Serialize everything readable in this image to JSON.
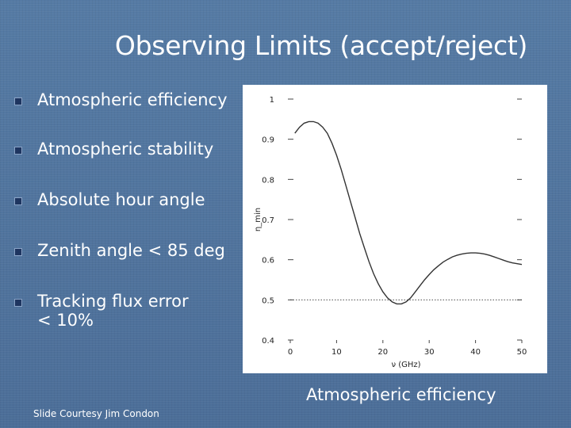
{
  "slide": {
    "title": "Observing Limits (accept/reject)",
    "bullets": [
      {
        "text": "Atmospheric efficiency"
      },
      {
        "text": "Atmospheric stability"
      },
      {
        "text": "Absolute hour angle"
      },
      {
        "text": "Zenith angle < 85 deg"
      },
      {
        "text": "Tracking flux error",
        "text2": "< 10%"
      }
    ],
    "caption": "Atmospheric efficiency",
    "credit": "Slide Courtesy Jim Condon"
  },
  "chart_data": {
    "type": "line",
    "xlabel": "ν (GHz)",
    "ylabel": "η_min",
    "xlim": [
      0,
      50
    ],
    "ylim": [
      0.4,
      1
    ],
    "x_ticks": [
      0,
      10,
      20,
      30,
      40,
      50
    ],
    "y_ticks": [
      0.4,
      0.5,
      0.6,
      0.7,
      0.8,
      0.9,
      1
    ],
    "grid": false,
    "series": [
      {
        "x": [
          1,
          2,
          3,
          4,
          5,
          6,
          7,
          8,
          9,
          10,
          11,
          12,
          13,
          14,
          15,
          16,
          17,
          18,
          19,
          20,
          21,
          22,
          23,
          24,
          25,
          26,
          27,
          28,
          29,
          30,
          31,
          32,
          33,
          34,
          35,
          36,
          37,
          38,
          39,
          40,
          41,
          42,
          43,
          44,
          45,
          46,
          47,
          48,
          49,
          50
        ],
        "y": [
          0.915,
          0.93,
          0.94,
          0.944,
          0.944,
          0.94,
          0.93,
          0.915,
          0.89,
          0.86,
          0.825,
          0.785,
          0.745,
          0.705,
          0.665,
          0.63,
          0.595,
          0.565,
          0.54,
          0.52,
          0.505,
          0.495,
          0.49,
          0.49,
          0.495,
          0.505,
          0.52,
          0.535,
          0.55,
          0.563,
          0.575,
          0.585,
          0.594,
          0.601,
          0.607,
          0.611,
          0.614,
          0.616,
          0.617,
          0.617,
          0.616,
          0.614,
          0.611,
          0.607,
          0.603,
          0.599,
          0.595,
          0.592,
          0.59,
          0.588
        ]
      }
    ],
    "reference_line": {
      "y": 0.5,
      "style": "dotted"
    }
  }
}
